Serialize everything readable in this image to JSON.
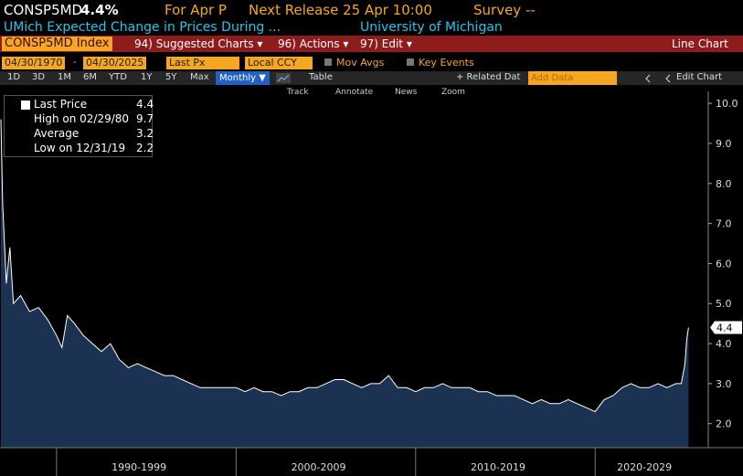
{
  "ui": {
    "header": {
      "ticker": "CONSP5MD",
      "change": "4.4%",
      "period": "For Apr P",
      "release": "Next Release 25 Apr 10:00",
      "survey": "Survey --"
    },
    "subtitle": {
      "name": "UMich Expected Change in Prices During ...",
      "source": "University of Michigan"
    },
    "menu": {
      "security": "CONSP5MD Index",
      "items": [
        "94) Suggested Charts ▾",
        "96) Actions ▾",
        "97) Edit ▾"
      ],
      "chart_type": "Line Chart"
    },
    "settings": {
      "start": "04/30/1970",
      "end": "04/30/2025",
      "field": "Last Px",
      "currency": "Local CCY",
      "options": [
        "Mov Avgs",
        "Key Events"
      ]
    },
    "toolbar": {
      "ranges": [
        "1D",
        "3D",
        "1M",
        "6M",
        "YTD",
        "1Y",
        "5Y",
        "Max"
      ],
      "frequency": "Monthly ▼",
      "table": "Table",
      "related": "+ Related Dat",
      "add_data": "Add Data",
      "edit": "Edit Chart"
    },
    "tools": [
      "Track",
      "Annotate",
      "News",
      "Zoom"
    ],
    "legend": [
      {
        "label": "High on 02/29/80",
        "value": 9.7
      },
      {
        "label": "Average",
        "value": 3.2
      },
      {
        "label": "Low on 12/31/19",
        "value": 2.2
      }
    ]
  },
  "chart_data": {
    "type": "area",
    "x": [
      1986.9,
      1987.0,
      1987.2,
      1987.4,
      1987.6,
      1988.0,
      1988.5,
      1989.0,
      1989.5,
      1990.0,
      1990.3,
      1990.6,
      1991.0,
      1991.5,
      1992.0,
      1992.5,
      1993.0,
      1993.5,
      1994.0,
      1994.5,
      1995.0,
      1995.5,
      1996.0,
      1996.5,
      1997.0,
      1997.5,
      1998.0,
      1998.5,
      1999.0,
      1999.5,
      2000.0,
      2000.5,
      2001.0,
      2001.5,
      2002.0,
      2002.5,
      2003.0,
      2003.5,
      2004.0,
      2004.5,
      2005.0,
      2005.5,
      2006.0,
      2006.5,
      2007.0,
      2007.5,
      2008.0,
      2008.5,
      2009.0,
      2009.5,
      2010.0,
      2010.5,
      2011.0,
      2011.5,
      2012.0,
      2012.5,
      2013.0,
      2013.5,
      2014.0,
      2014.5,
      2015.0,
      2015.5,
      2016.0,
      2016.5,
      2017.0,
      2017.5,
      2018.0,
      2018.5,
      2019.0,
      2019.5,
      2020.0,
      2020.5,
      2021.0,
      2021.5,
      2022.0,
      2022.5,
      2023.0,
      2023.5,
      2024.0,
      2024.5,
      2024.8,
      2025.0,
      2025.1,
      2025.2
    ],
    "series": [
      {
        "name": "Last Price",
        "color": "#ffffff",
        "fill": "#1b3252",
        "values": [
          9.6,
          7.5,
          5.5,
          6.4,
          5.0,
          5.2,
          4.8,
          4.9,
          4.6,
          4.2,
          3.9,
          4.7,
          4.5,
          4.2,
          4.0,
          3.8,
          4.0,
          3.6,
          3.4,
          3.5,
          3.4,
          3.3,
          3.2,
          3.2,
          3.1,
          3.0,
          2.9,
          2.9,
          2.9,
          2.9,
          2.9,
          2.8,
          2.9,
          2.8,
          2.8,
          2.7,
          2.8,
          2.8,
          2.9,
          2.9,
          3.0,
          3.1,
          3.1,
          3.0,
          2.9,
          3.0,
          3.0,
          3.2,
          2.9,
          2.9,
          2.8,
          2.9,
          2.9,
          3.0,
          2.9,
          2.9,
          2.9,
          2.8,
          2.8,
          2.7,
          2.7,
          2.7,
          2.6,
          2.5,
          2.6,
          2.5,
          2.5,
          2.6,
          2.5,
          2.4,
          2.3,
          2.6,
          2.7,
          2.9,
          3.0,
          2.9,
          2.9,
          3.0,
          2.9,
          3.0,
          3.0,
          3.5,
          4.1,
          4.4
        ]
      }
    ],
    "xlim": [
      1986.85,
      2026.3
    ],
    "xticks": [
      {
        "value": 1990,
        "label": "1990-1999"
      },
      {
        "value": 2000,
        "label": "2000-2009"
      },
      {
        "value": 2010,
        "label": "2010-2019"
      },
      {
        "value": 2020,
        "label": "2020-2029"
      }
    ],
    "ylim": [
      1.4,
      10.3
    ],
    "yticks": [
      {
        "value": 2,
        "label": "2.0"
      },
      {
        "value": 3,
        "label": "3.0"
      },
      {
        "value": 4,
        "label": "4.0"
      },
      {
        "value": 5,
        "label": "5.0"
      },
      {
        "value": 6,
        "label": "6.0"
      },
      {
        "value": 7,
        "label": "7.0"
      },
      {
        "value": 8,
        "label": "8.0"
      },
      {
        "value": 9,
        "label": "9.0"
      },
      {
        "value": 10,
        "label": "10.0"
      }
    ]
  }
}
